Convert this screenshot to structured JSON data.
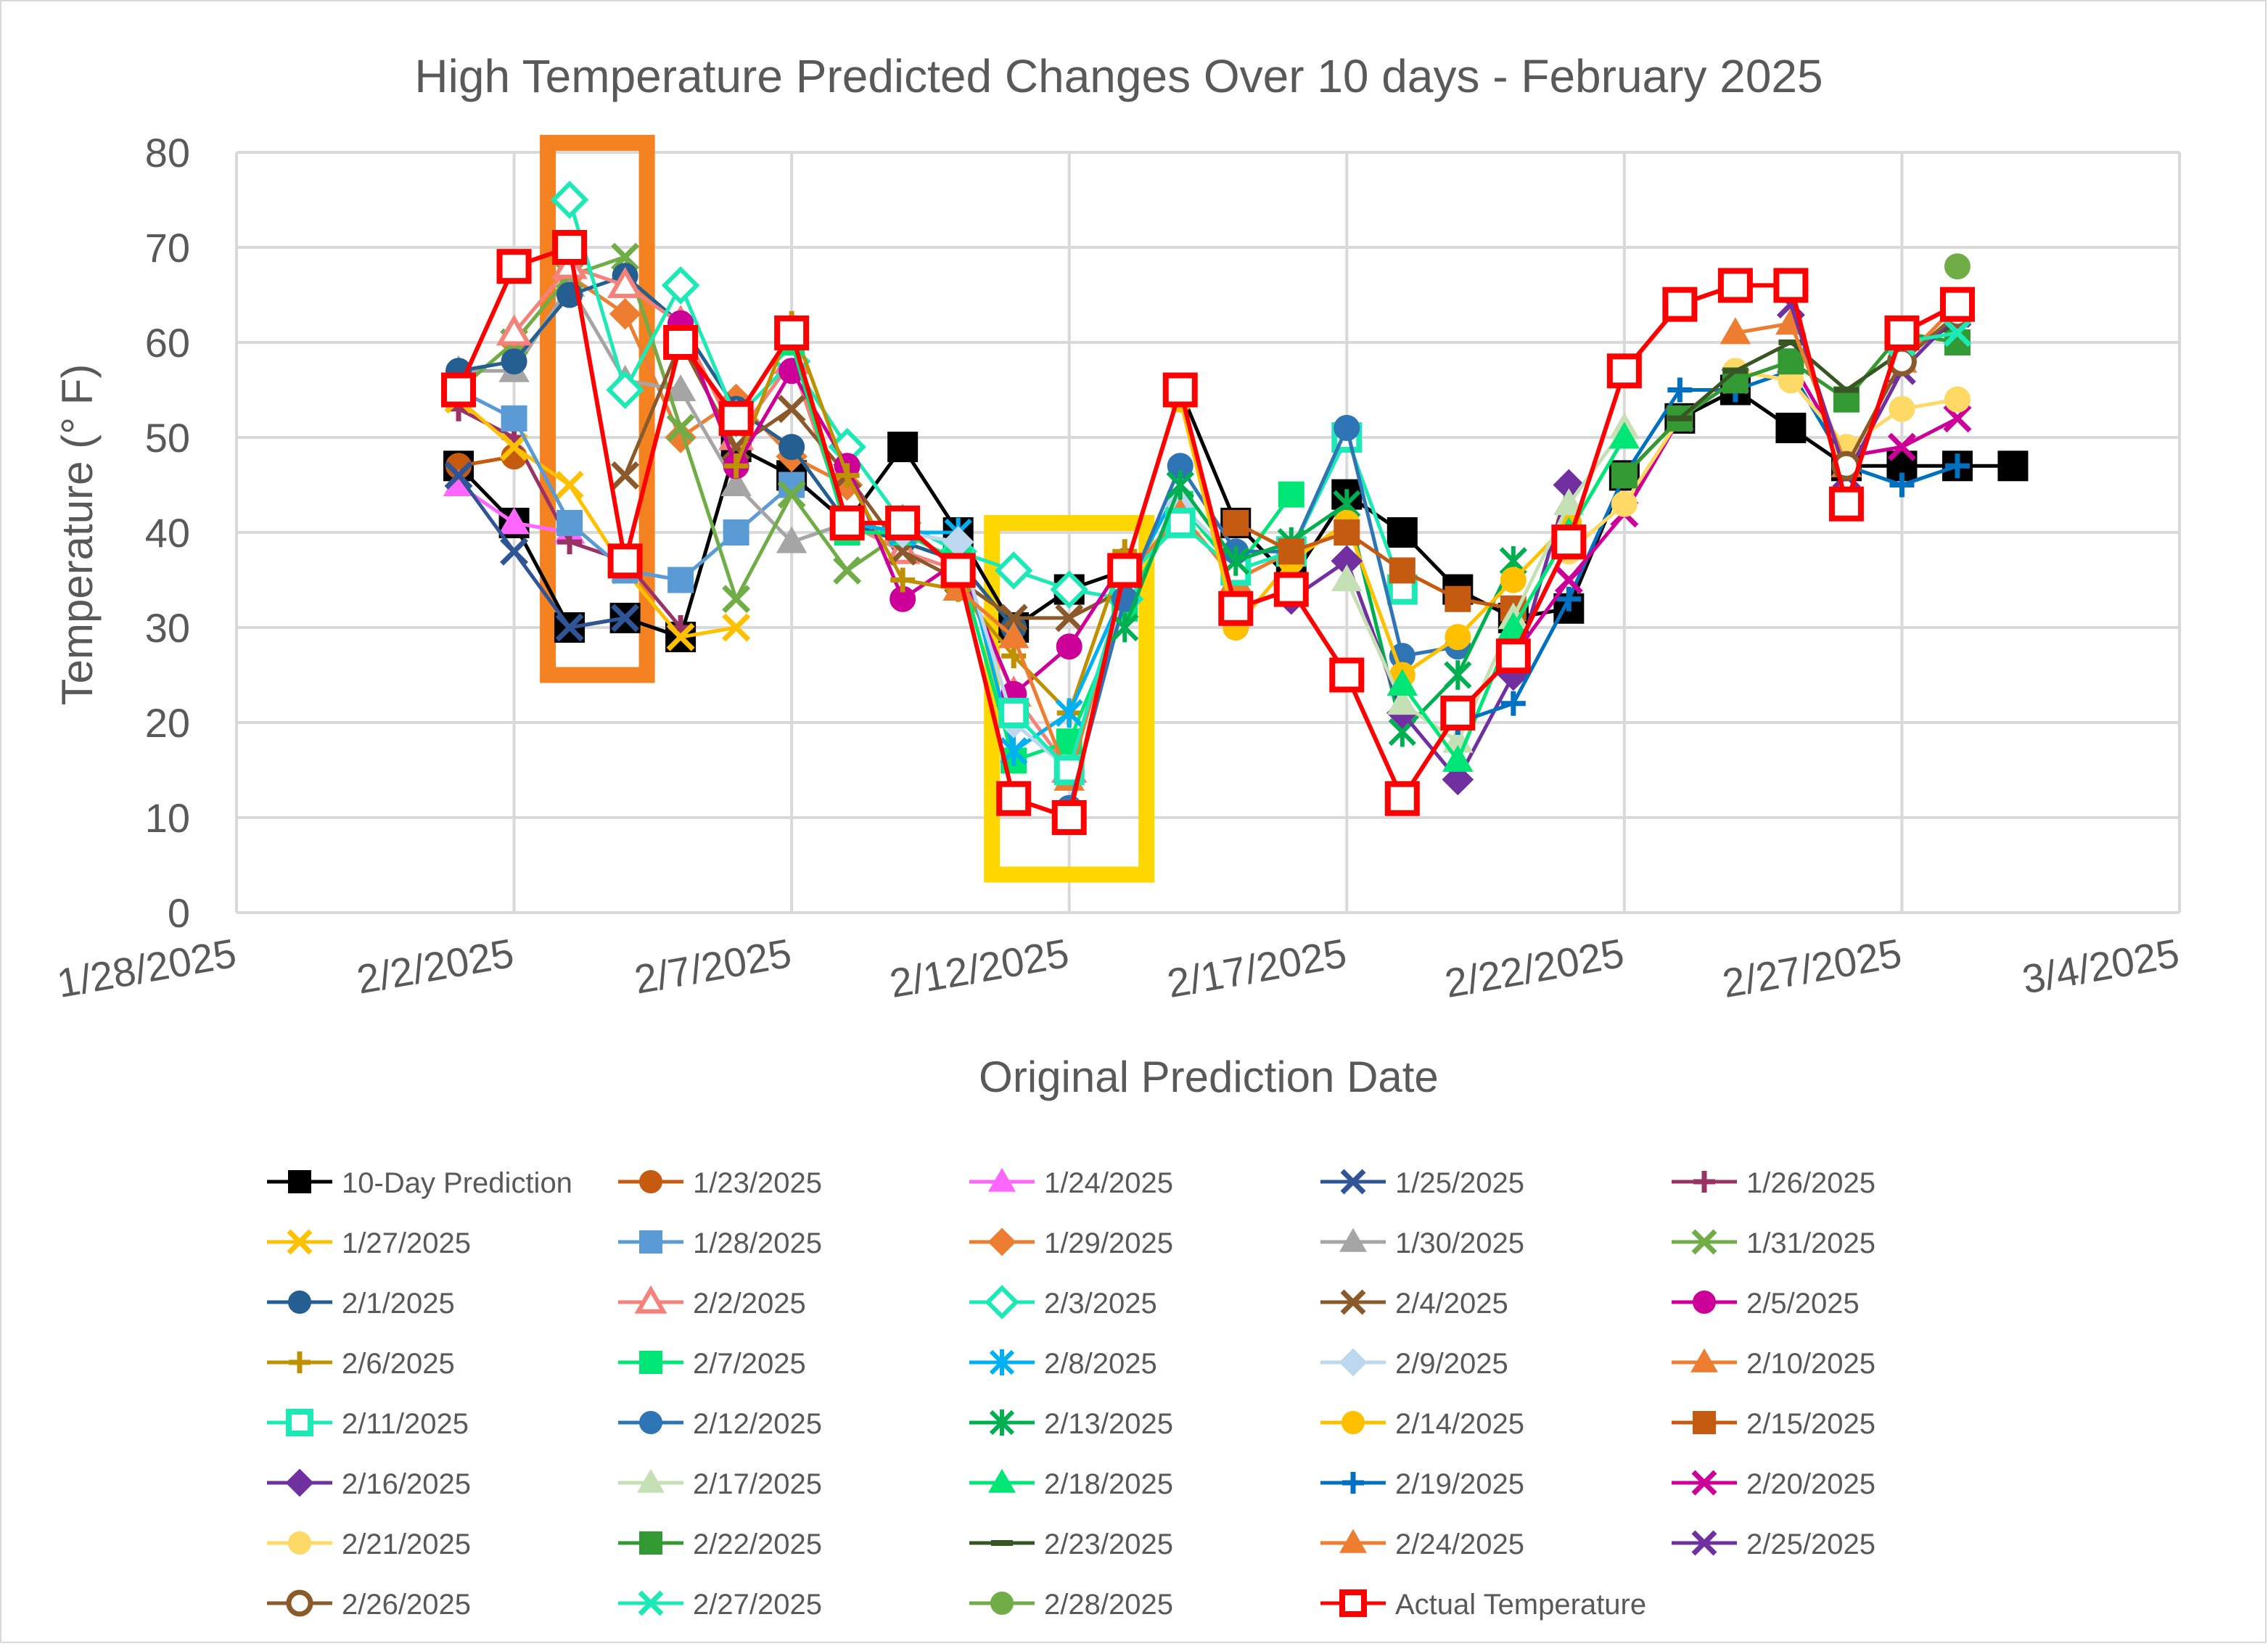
{
  "chart_data": {
    "type": "line",
    "title": "High Temperature Predicted Changes Over 10 days - February 2025",
    "xlabel": "Original Prediction Date",
    "ylabel": "Temperature (° F)",
    "ylim": [
      0,
      80
    ],
    "yticks": [
      "0",
      "10",
      "20",
      "30",
      "40",
      "50",
      "60",
      "70",
      "80"
    ],
    "xlim": [
      "2025-01-28",
      "2025-03-04"
    ],
    "xticks": [
      "1/28/2025",
      "2/2/2025",
      "2/7/2025",
      "2/12/2025",
      "2/17/2025",
      "2/22/2025",
      "2/27/2025",
      "3/4/2025"
    ],
    "grid": true,
    "legend_position": "bottom",
    "highlights": [
      {
        "from": "2025-02-03",
        "to": "2025-02-04",
        "ymin": 25,
        "ymax": 81,
        "color": "#f58220"
      },
      {
        "from": "2025-02-11",
        "to": "2025-02-13",
        "ymin": 4,
        "ymax": 41,
        "color": "#ffd700"
      }
    ],
    "series": [
      {
        "name": "10-Day Prediction",
        "color": "#000000",
        "marker": "square",
        "line": true,
        "x": [
          "2025-02-01",
          "2025-02-02",
          "2025-02-03",
          "2025-02-04",
          "2025-02-05",
          "2025-02-06",
          "2025-02-07",
          "2025-02-08",
          "2025-02-09",
          "2025-02-10",
          "2025-02-11",
          "2025-02-12",
          "2025-02-13",
          "2025-02-14",
          "2025-02-15",
          "2025-02-16",
          "2025-02-17",
          "2025-02-18",
          "2025-02-19",
          "2025-02-20",
          "2025-02-21",
          "2025-02-22",
          "2025-02-23",
          "2025-02-24",
          "2025-02-25",
          "2025-02-26",
          "2025-02-27",
          "2025-02-28",
          "2025-03-01"
        ],
        "y": [
          47,
          41,
          30,
          31,
          29,
          49,
          46,
          41,
          49,
          40,
          30,
          34,
          36,
          55,
          41,
          35,
          44,
          40,
          34,
          31,
          32,
          46,
          52,
          55,
          51,
          47,
          47,
          47,
          47
        ]
      },
      {
        "name": "1/23/2025",
        "color": "#c55a11",
        "marker": "circle",
        "line": true,
        "x": [
          "2025-02-01",
          "2025-02-02"
        ],
        "y": [
          47,
          48
        ]
      },
      {
        "name": "1/24/2025",
        "color": "#ff66ff",
        "marker": "triangle",
        "line": true,
        "x": [
          "2025-02-01",
          "2025-02-02",
          "2025-02-03"
        ],
        "y": [
          45,
          41,
          40
        ]
      },
      {
        "name": "1/25/2025",
        "color": "#2f5597",
        "marker": "x",
        "line": true,
        "x": [
          "2025-02-01",
          "2025-02-02",
          "2025-02-03",
          "2025-02-04"
        ],
        "y": [
          46,
          38,
          30,
          31
        ]
      },
      {
        "name": "1/26/2025",
        "color": "#993366",
        "marker": "plus",
        "line": true,
        "x": [
          "2025-02-01",
          "2025-02-02",
          "2025-02-03",
          "2025-02-04",
          "2025-02-05"
        ],
        "y": [
          53,
          50,
          39,
          37,
          30
        ]
      },
      {
        "name": "1/27/2025",
        "color": "#ffc000",
        "marker": "x",
        "line": true,
        "x": [
          "2025-02-01",
          "2025-02-02",
          "2025-02-03",
          "2025-02-04",
          "2025-02-05",
          "2025-02-06"
        ],
        "y": [
          54,
          49,
          45,
          36,
          29,
          30
        ]
      },
      {
        "name": "1/28/2025",
        "color": "#5b9bd5",
        "marker": "square",
        "line": true,
        "x": [
          "2025-02-01",
          "2025-02-02",
          "2025-02-03",
          "2025-02-04",
          "2025-02-05",
          "2025-02-06",
          "2025-02-07"
        ],
        "y": [
          55,
          52,
          41,
          36,
          35,
          40,
          45
        ]
      },
      {
        "name": "1/29/2025",
        "color": "#ed7d31",
        "marker": "diamond",
        "line": true,
        "x": [
          "2025-02-01",
          "2025-02-02",
          "2025-02-03",
          "2025-02-04",
          "2025-02-05",
          "2025-02-06",
          "2025-02-07",
          "2025-02-08"
        ],
        "y": [
          55,
          60,
          67,
          63,
          50,
          54,
          48,
          45
        ]
      },
      {
        "name": "1/30/2025",
        "color": "#a5a5a5",
        "marker": "triangle",
        "line": true,
        "x": [
          "2025-02-01",
          "2025-02-02",
          "2025-02-03",
          "2025-02-04",
          "2025-02-05",
          "2025-02-06",
          "2025-02-07",
          "2025-02-08",
          "2025-02-09"
        ],
        "y": [
          57,
          57,
          66,
          56,
          55,
          45,
          39,
          41,
          40
        ]
      },
      {
        "name": "1/31/2025",
        "color": "#70ad47",
        "marker": "x",
        "line": true,
        "x": [
          "2025-02-01",
          "2025-02-02",
          "2025-02-03",
          "2025-02-04",
          "2025-02-05",
          "2025-02-06",
          "2025-02-07",
          "2025-02-08",
          "2025-02-09",
          "2025-02-10"
        ],
        "y": [
          55,
          60,
          67,
          69,
          51,
          33,
          44,
          36,
          40,
          37
        ]
      },
      {
        "name": "2/1/2025",
        "color": "#255e91",
        "marker": "circle",
        "line": true,
        "x": [
          "2025-02-01",
          "2025-02-02",
          "2025-02-03",
          "2025-02-04",
          "2025-02-05",
          "2025-02-06",
          "2025-02-07",
          "2025-02-08",
          "2025-02-09",
          "2025-02-10",
          "2025-02-11"
        ],
        "y": [
          57,
          58,
          65,
          67,
          62,
          53,
          49,
          41,
          39,
          37,
          30
        ]
      },
      {
        "name": "2/2/2025",
        "color": "#f4817a",
        "marker": "triangle-open",
        "line": true,
        "x": [
          "2025-02-02",
          "2025-02-03",
          "2025-02-04",
          "2025-02-05",
          "2025-02-06",
          "2025-02-07",
          "2025-02-08",
          "2025-02-09",
          "2025-02-10",
          "2025-02-11",
          "2025-02-12"
        ],
        "y": [
          61,
          68,
          66,
          62,
          50,
          58,
          41,
          38,
          36,
          23,
          15
        ]
      },
      {
        "name": "2/3/2025",
        "color": "#1de9b6",
        "marker": "diamond-open",
        "line": true,
        "x": [
          "2025-02-03",
          "2025-02-04",
          "2025-02-05",
          "2025-02-06",
          "2025-02-07",
          "2025-02-08",
          "2025-02-09",
          "2025-02-10",
          "2025-02-11",
          "2025-02-12",
          "2025-02-13"
        ],
        "y": [
          75,
          55,
          66,
          52,
          58,
          49,
          41,
          38,
          36,
          34,
          33
        ]
      },
      {
        "name": "2/4/2025",
        "color": "#8b5a2b",
        "marker": "x",
        "line": true,
        "x": [
          "2025-02-04",
          "2025-02-05",
          "2025-02-06",
          "2025-02-07",
          "2025-02-08",
          "2025-02-09",
          "2025-02-10",
          "2025-02-11",
          "2025-02-12",
          "2025-02-13"
        ],
        "y": [
          46,
          60,
          49,
          53,
          46,
          38,
          35,
          31,
          31,
          34
        ]
      },
      {
        "name": "2/5/2025",
        "color": "#cc0099",
        "marker": "circle",
        "line": true,
        "x": [
          "2025-02-05",
          "2025-02-06",
          "2025-02-07",
          "2025-02-08",
          "2025-02-09",
          "2025-02-10",
          "2025-02-11",
          "2025-02-12",
          "2025-02-13"
        ],
        "y": [
          62,
          47,
          57,
          47,
          33,
          37,
          23,
          28,
          37
        ]
      },
      {
        "name": "2/6/2025",
        "color": "#bf9000",
        "marker": "plus",
        "line": true,
        "x": [
          "2025-02-06",
          "2025-02-07",
          "2025-02-08",
          "2025-02-09",
          "2025-02-10",
          "2025-02-11",
          "2025-02-12",
          "2025-02-13"
        ],
        "y": [
          47,
          62,
          46,
          35,
          34,
          27,
          21,
          38
        ]
      },
      {
        "name": "2/7/2025",
        "color": "#00e676",
        "marker": "square",
        "line": true,
        "x": [
          "2025-02-07",
          "2025-02-08",
          "2025-02-09",
          "2025-02-10",
          "2025-02-11",
          "2025-02-12",
          "2025-02-13",
          "2025-02-14",
          "2025-02-15",
          "2025-02-16"
        ],
        "y": [
          60,
          40,
          40,
          37,
          16,
          18,
          32,
          43,
          36,
          44
        ]
      },
      {
        "name": "2/8/2025",
        "color": "#00b0f0",
        "marker": "asterisk",
        "line": true,
        "x": [
          "2025-02-08",
          "2025-02-09",
          "2025-02-10",
          "2025-02-11",
          "2025-02-12",
          "2025-02-13",
          "2025-02-14"
        ],
        "y": [
          41,
          40,
          40,
          17,
          21,
          34,
          45
        ]
      },
      {
        "name": "2/9/2025",
        "color": "#bdd7ee",
        "marker": "diamond",
        "line": true,
        "x": [
          "2025-02-09",
          "2025-02-10",
          "2025-02-11",
          "2025-02-12",
          "2025-02-13",
          "2025-02-14",
          "2025-02-15"
        ],
        "y": [
          40,
          39,
          20,
          15,
          34,
          43,
          37
        ]
      },
      {
        "name": "2/10/2025",
        "color": "#ed7d31",
        "marker": "triangle",
        "line": true,
        "x": [
          "2025-02-10",
          "2025-02-11",
          "2025-02-12",
          "2025-02-13",
          "2025-02-14",
          "2025-02-15",
          "2025-02-16"
        ],
        "y": [
          34,
          29,
          14,
          35,
          42,
          35,
          38
        ]
      },
      {
        "name": "2/11/2025",
        "color": "#1de9b6",
        "marker": "square-open",
        "line": true,
        "x": [
          "2025-02-11",
          "2025-02-12",
          "2025-02-13",
          "2025-02-14",
          "2025-02-15",
          "2025-02-16",
          "2025-02-17",
          "2025-02-18"
        ],
        "y": [
          21,
          15,
          35,
          41,
          36,
          38,
          50,
          34
        ]
      },
      {
        "name": "2/12/2025",
        "color": "#2e75b6",
        "marker": "circle",
        "line": true,
        "x": [
          "2025-02-12",
          "2025-02-13",
          "2025-02-14",
          "2025-02-15",
          "2025-02-16",
          "2025-02-17",
          "2025-02-18",
          "2025-02-19"
        ],
        "y": [
          11,
          33,
          47,
          38,
          38,
          51,
          27,
          28
        ]
      },
      {
        "name": "2/13/2025",
        "color": "#00b050",
        "marker": "asterisk",
        "line": true,
        "x": [
          "2025-02-13",
          "2025-02-14",
          "2025-02-15",
          "2025-02-16",
          "2025-02-17",
          "2025-02-18",
          "2025-02-19",
          "2025-02-20"
        ],
        "y": [
          30,
          45,
          37,
          39,
          43,
          19,
          25,
          37
        ]
      },
      {
        "name": "2/14/2025",
        "color": "#ffc000",
        "marker": "circle",
        "line": true,
        "x": [
          "2025-02-14",
          "2025-02-15",
          "2025-02-16",
          "2025-02-17",
          "2025-02-18",
          "2025-02-19",
          "2025-02-20",
          "2025-02-21"
        ],
        "y": [
          54,
          30,
          37,
          41,
          25,
          29,
          35,
          41
        ]
      },
      {
        "name": "2/15/2025",
        "color": "#c55a11",
        "marker": "square",
        "line": true,
        "x": [
          "2025-02-15",
          "2025-02-16",
          "2025-02-17",
          "2025-02-18",
          "2025-02-19",
          "2025-02-20"
        ],
        "y": [
          41,
          38,
          40,
          36,
          33,
          32
        ]
      },
      {
        "name": "2/16/2025",
        "color": "#7030a0",
        "marker": "diamond",
        "line": true,
        "x": [
          "2025-02-16",
          "2025-02-17",
          "2025-02-18",
          "2025-02-19",
          "2025-02-20",
          "2025-02-21"
        ],
        "y": [
          33,
          37,
          21,
          14,
          25,
          45
        ]
      },
      {
        "name": "2/17/2025",
        "color": "#c5e0b4",
        "marker": "triangle",
        "line": true,
        "x": [
          "2025-02-17",
          "2025-02-18",
          "2025-02-19",
          "2025-02-20",
          "2025-02-21",
          "2025-02-22"
        ],
        "y": [
          35,
          22,
          18,
          31,
          43,
          51
        ]
      },
      {
        "name": "2/18/2025",
        "color": "#00e676",
        "marker": "triangle",
        "line": true,
        "x": [
          "2025-02-18",
          "2025-02-19",
          "2025-02-20",
          "2025-02-21",
          "2025-02-22"
        ],
        "y": [
          24,
          16,
          30,
          40,
          50
        ]
      },
      {
        "name": "2/19/2025",
        "color": "#0070c0",
        "marker": "plus",
        "line": true,
        "x": [
          "2025-02-19",
          "2025-02-20",
          "2025-02-21",
          "2025-02-22",
          "2025-02-23",
          "2025-02-24",
          "2025-02-25",
          "2025-02-26",
          "2025-02-27",
          "2025-02-28"
        ],
        "y": [
          20,
          22,
          33,
          46,
          55,
          55,
          57,
          47,
          45,
          47
        ]
      },
      {
        "name": "2/20/2025",
        "color": "#cc0099",
        "marker": "x",
        "line": true,
        "x": [
          "2025-02-20",
          "2025-02-21",
          "2025-02-22",
          "2025-02-23",
          "2025-02-24",
          "2025-02-25",
          "2025-02-26",
          "2025-02-27",
          "2025-02-28"
        ],
        "y": [
          27,
          35,
          42,
          52,
          56,
          58,
          48,
          49,
          52
        ]
      },
      {
        "name": "2/21/2025",
        "color": "#ffd966",
        "marker": "circle",
        "line": true,
        "x": [
          "2025-02-21",
          "2025-02-22",
          "2025-02-23",
          "2025-02-24",
          "2025-02-25",
          "2025-02-26",
          "2025-02-27",
          "2025-02-28"
        ],
        "y": [
          38,
          43,
          52,
          57,
          56,
          49,
          53,
          54
        ]
      },
      {
        "name": "2/22/2025",
        "color": "#339933",
        "marker": "square",
        "line": true,
        "x": [
          "2025-02-22",
          "2025-02-23",
          "2025-02-24",
          "2025-02-25",
          "2025-02-26",
          "2025-02-27",
          "2025-02-28"
        ],
        "y": [
          46,
          52,
          56,
          58,
          54,
          61,
          60
        ]
      },
      {
        "name": "2/23/2025",
        "color": "#375623",
        "marker": "dash",
        "line": true,
        "x": [
          "2025-02-23",
          "2025-02-24",
          "2025-02-25",
          "2025-02-26",
          "2025-02-27",
          "2025-02-28"
        ],
        "y": [
          52,
          57,
          60,
          55,
          59,
          62
        ]
      },
      {
        "name": "2/24/2025",
        "color": "#ed7d31",
        "marker": "triangle",
        "line": true,
        "x": [
          "2025-02-24",
          "2025-02-25",
          "2025-02-26",
          "2025-02-27",
          "2025-02-28"
        ],
        "y": [
          61,
          62,
          47,
          58,
          64
        ]
      },
      {
        "name": "2/25/2025",
        "color": "#7030a0",
        "marker": "x",
        "line": true,
        "x": [
          "2025-02-25",
          "2025-02-26",
          "2025-02-27",
          "2025-02-28"
        ],
        "y": [
          64,
          46,
          57,
          63
        ]
      },
      {
        "name": "2/26/2025",
        "color": "#8b5a2b",
        "marker": "circle-open",
        "line": true,
        "x": [
          "2025-02-26",
          "2025-02-27",
          "2025-02-28"
        ],
        "y": [
          47,
          58,
          63
        ]
      },
      {
        "name": "2/27/2025",
        "color": "#1de9b6",
        "marker": "x",
        "line": true,
        "x": [
          "2025-02-27",
          "2025-02-28"
        ],
        "y": [
          60,
          61
        ]
      },
      {
        "name": "2/28/2025",
        "color": "#70ad47",
        "marker": "circle",
        "line": true,
        "x": [
          "2025-02-28"
        ],
        "y": [
          68
        ]
      },
      {
        "name": "Actual Temperature",
        "color": "#ff0000",
        "marker": "square-open",
        "line": true,
        "x": [
          "2025-02-01",
          "2025-02-02",
          "2025-02-03",
          "2025-02-04",
          "2025-02-05",
          "2025-02-06",
          "2025-02-07",
          "2025-02-08",
          "2025-02-09",
          "2025-02-10",
          "2025-02-11",
          "2025-02-12",
          "2025-02-13",
          "2025-02-14",
          "2025-02-15",
          "2025-02-16",
          "2025-02-17",
          "2025-02-18",
          "2025-02-19",
          "2025-02-20",
          "2025-02-21",
          "2025-02-22",
          "2025-02-23",
          "2025-02-24",
          "2025-02-25",
          "2025-02-26",
          "2025-02-27",
          "2025-02-28"
        ],
        "y": [
          55,
          68,
          70,
          37,
          60,
          52,
          61,
          41,
          41,
          36,
          12,
          10,
          36,
          55,
          32,
          34,
          25,
          12,
          21,
          27,
          39,
          57,
          64,
          66,
          66,
          43,
          61,
          64
        ]
      }
    ]
  }
}
